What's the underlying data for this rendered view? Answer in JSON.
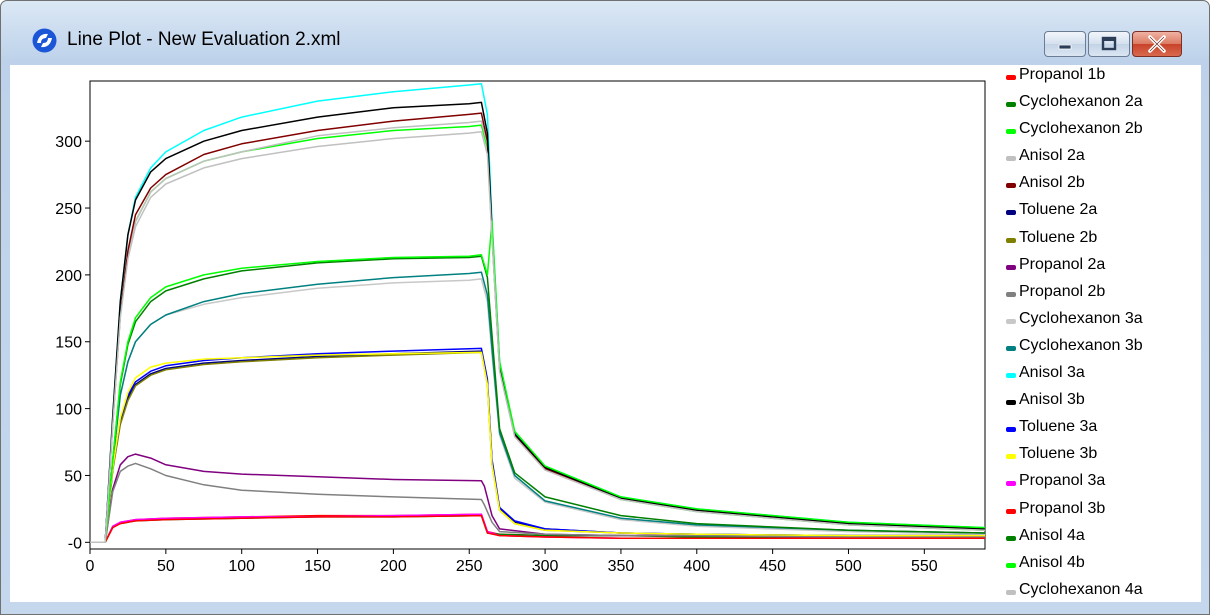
{
  "window": {
    "title": "Line Plot - New Evaluation 2.xml",
    "icon": "app-logo-icon",
    "buttons": [
      "minimize-icon",
      "maximize-icon",
      "close-icon"
    ]
  },
  "chart_data": {
    "type": "line",
    "title": "",
    "xlabel": "",
    "ylabel": "",
    "xlim": [
      0,
      590
    ],
    "ylim": [
      -5,
      345
    ],
    "x_ticks": [
      0,
      50,
      100,
      150,
      200,
      250,
      300,
      350,
      400,
      450,
      500,
      550
    ],
    "y_ticks": [
      0,
      50,
      100,
      150,
      200,
      250,
      300
    ],
    "y_tick_labels": [
      "-0",
      "50",
      "100",
      "150",
      "200",
      "250",
      "300"
    ],
    "grid": false,
    "legend_position": "right",
    "series": [
      {
        "name": "Propanol 1b",
        "color": "#ff0000",
        "x": [
          0,
          10,
          15,
          20,
          30,
          50,
          100,
          150,
          200,
          258,
          262,
          270,
          300,
          350,
          400,
          500,
          590
        ],
        "y": [
          0,
          0,
          12,
          15,
          17,
          18,
          19,
          20,
          20,
          21,
          8,
          6,
          5,
          5,
          5,
          4,
          4
        ]
      },
      {
        "name": "Cyclohexanon 2a",
        "color": "#008000",
        "x": [
          0,
          10,
          15,
          20,
          30,
          50,
          100,
          150,
          200,
          258,
          262,
          270,
          300,
          350,
          400,
          500,
          590
        ],
        "y": [
          0,
          0,
          12,
          14,
          16,
          17,
          18,
          19,
          19,
          20,
          7,
          6,
          5,
          5,
          4,
          4,
          4
        ]
      },
      {
        "name": "Cyclohexanon 2b",
        "color": "#00ff00",
        "x": [
          0,
          10,
          15,
          20,
          25,
          30,
          40,
          50,
          75,
          100,
          150,
          200,
          250,
          258,
          262,
          265,
          270,
          280,
          300,
          350,
          400,
          500,
          590
        ],
        "y": [
          0,
          0,
          90,
          170,
          215,
          240,
          262,
          272,
          285,
          292,
          302,
          308,
          311,
          312,
          295,
          230,
          130,
          80,
          55,
          32,
          23,
          13,
          9
        ]
      },
      {
        "name": "Anisol 2a",
        "color": "#c0c0c0",
        "x": [
          0,
          10,
          15,
          20,
          25,
          30,
          40,
          50,
          75,
          100,
          150,
          200,
          250,
          258,
          262,
          265,
          270,
          280,
          300,
          350,
          400,
          500,
          590
        ],
        "y": [
          0,
          0,
          90,
          170,
          215,
          240,
          262,
          272,
          285,
          292,
          304,
          310,
          314,
          315,
          298,
          230,
          130,
          80,
          55,
          33,
          24,
          14,
          10
        ]
      },
      {
        "name": "Anisol 2b",
        "color": "#800000",
        "x": [
          0,
          10,
          15,
          20,
          25,
          30,
          40,
          50,
          75,
          100,
          150,
          200,
          250,
          258,
          262,
          265,
          270,
          280,
          300,
          350,
          400,
          500,
          590
        ],
        "y": [
          0,
          0,
          90,
          170,
          218,
          245,
          265,
          275,
          290,
          298,
          308,
          315,
          320,
          321,
          300,
          230,
          130,
          80,
          55,
          33,
          24,
          14,
          10
        ]
      },
      {
        "name": "Toluene 2a",
        "color": "#000080",
        "x": [
          0,
          10,
          15,
          20,
          25,
          30,
          40,
          50,
          75,
          100,
          150,
          200,
          258,
          262,
          265,
          270,
          280,
          300,
          350,
          400,
          500,
          590
        ],
        "y": [
          0,
          0,
          55,
          90,
          108,
          118,
          126,
          130,
          134,
          136,
          139,
          141,
          143,
          120,
          60,
          25,
          15,
          10,
          7,
          6,
          5,
          5
        ]
      },
      {
        "name": "Toluene 2b",
        "color": "#808000",
        "x": [
          0,
          10,
          15,
          20,
          25,
          30,
          40,
          50,
          75,
          100,
          150,
          200,
          258,
          262,
          265,
          270,
          280,
          300,
          350,
          400,
          500,
          590
        ],
        "y": [
          0,
          0,
          54,
          88,
          106,
          117,
          125,
          129,
          133,
          135,
          138,
          140,
          142,
          118,
          58,
          24,
          14,
          9,
          7,
          6,
          5,
          5
        ]
      },
      {
        "name": "Propanol 2a",
        "color": "#800080",
        "x": [
          0,
          10,
          15,
          20,
          25,
          30,
          40,
          50,
          75,
          100,
          150,
          200,
          258,
          260,
          265,
          270,
          300,
          350,
          400,
          500,
          590
        ],
        "y": [
          0,
          0,
          40,
          58,
          64,
          66,
          63,
          58,
          53,
          51,
          49,
          47,
          46,
          42,
          20,
          10,
          6,
          5,
          5,
          4,
          4
        ]
      },
      {
        "name": "Propanol 2b",
        "color": "#808080",
        "x": [
          0,
          10,
          15,
          20,
          25,
          30,
          40,
          50,
          75,
          100,
          150,
          200,
          258,
          260,
          265,
          270,
          300,
          350,
          400,
          500,
          590
        ],
        "y": [
          0,
          0,
          38,
          53,
          57,
          59,
          55,
          50,
          43,
          39,
          36,
          34,
          32,
          28,
          15,
          8,
          6,
          5,
          5,
          4,
          4
        ]
      },
      {
        "name": "Cyclohexanon 3a",
        "color": "#c8c8c8",
        "x": [
          0,
          10,
          15,
          20,
          25,
          30,
          40,
          50,
          75,
          100,
          150,
          200,
          250,
          258,
          262,
          265,
          270,
          280,
          300,
          350,
          400,
          500,
          590
        ],
        "y": [
          0,
          0,
          60,
          110,
          135,
          150,
          163,
          170,
          178,
          183,
          190,
          194,
          196,
          197,
          180,
          140,
          80,
          48,
          30,
          17,
          12,
          8,
          6
        ]
      },
      {
        "name": "Cyclohexanon 3b",
        "color": "#008080",
        "x": [
          0,
          10,
          15,
          20,
          25,
          30,
          40,
          50,
          75,
          100,
          150,
          200,
          250,
          258,
          262,
          265,
          270,
          280,
          300,
          350,
          400,
          500,
          590
        ],
        "y": [
          0,
          0,
          60,
          110,
          135,
          150,
          163,
          170,
          180,
          186,
          193,
          198,
          201,
          202,
          185,
          145,
          82,
          50,
          31,
          18,
          13,
          9,
          7
        ]
      },
      {
        "name": "Anisol 3a",
        "color": "#00ffff",
        "x": [
          0,
          10,
          15,
          20,
          25,
          30,
          40,
          50,
          75,
          100,
          150,
          200,
          250,
          258,
          262,
          265,
          270,
          280,
          300,
          350,
          400,
          500,
          590
        ],
        "y": [
          0,
          0,
          95,
          180,
          230,
          258,
          280,
          292,
          308,
          318,
          330,
          337,
          342,
          343,
          320,
          240,
          135,
          82,
          57,
          34,
          25,
          15,
          11
        ]
      },
      {
        "name": "Anisol 3b",
        "color": "#000000",
        "x": [
          0,
          10,
          15,
          20,
          25,
          30,
          40,
          50,
          75,
          100,
          150,
          200,
          250,
          258,
          262,
          265,
          270,
          280,
          300,
          350,
          400,
          500,
          590
        ],
        "y": [
          0,
          0,
          95,
          180,
          230,
          256,
          277,
          287,
          300,
          308,
          318,
          325,
          328,
          329,
          306,
          235,
          133,
          81,
          56,
          33,
          24,
          14,
          10
        ]
      },
      {
        "name": "Toluene 3a",
        "color": "#0000ff",
        "x": [
          0,
          10,
          15,
          20,
          25,
          30,
          40,
          50,
          75,
          100,
          150,
          200,
          258,
          262,
          265,
          270,
          280,
          300,
          350,
          400,
          500,
          590
        ],
        "y": [
          0,
          0,
          56,
          92,
          110,
          120,
          128,
          132,
          136,
          138,
          141,
          143,
          145,
          122,
          62,
          26,
          16,
          10,
          7,
          6,
          5,
          5
        ]
      },
      {
        "name": "Toluene 3b",
        "color": "#ffff00",
        "x": [
          0,
          10,
          15,
          20,
          25,
          30,
          40,
          50,
          75,
          100,
          150,
          200,
          258,
          262,
          265,
          270,
          280,
          300,
          350,
          400,
          500,
          590
        ],
        "y": [
          0,
          0,
          56,
          93,
          112,
          123,
          131,
          134,
          137,
          138,
          140,
          141,
          142,
          118,
          58,
          24,
          14,
          9,
          7,
          6,
          5,
          5
        ]
      },
      {
        "name": "Propanol 3a",
        "color": "#ff00ff",
        "x": [
          0,
          10,
          15,
          20,
          30,
          50,
          100,
          150,
          200,
          258,
          262,
          270,
          300,
          350,
          400,
          500,
          590
        ],
        "y": [
          0,
          0,
          12,
          15,
          17,
          18,
          19,
          19,
          20,
          21,
          8,
          5,
          4,
          3,
          3,
          3,
          3
        ]
      },
      {
        "name": "Propanol 3b",
        "color": "#ff0000",
        "x": [
          0,
          10,
          15,
          20,
          30,
          50,
          100,
          150,
          200,
          258,
          262,
          270,
          300,
          350,
          400,
          500,
          590
        ],
        "y": [
          0,
          0,
          11,
          14,
          16,
          17,
          18,
          19,
          19,
          20,
          7,
          5,
          4,
          3,
          3,
          3,
          3
        ]
      },
      {
        "name": "Anisol 4a",
        "color": "#008000",
        "x": [
          0,
          10,
          15,
          20,
          25,
          30,
          40,
          50,
          75,
          100,
          150,
          200,
          250,
          258,
          262,
          265,
          270,
          280,
          300,
          350,
          400,
          500,
          590
        ],
        "y": [
          0,
          0,
          62,
          118,
          148,
          165,
          180,
          188,
          197,
          203,
          209,
          212,
          213,
          214,
          198,
          155,
          85,
          52,
          34,
          20,
          14,
          9,
          7
        ]
      },
      {
        "name": "Anisol 4b",
        "color": "#00ff00",
        "x": [
          0,
          10,
          15,
          20,
          25,
          30,
          40,
          50,
          75,
          100,
          150,
          200,
          250,
          258,
          262,
          265,
          270,
          280,
          300,
          350,
          400,
          500,
          590
        ],
        "y": [
          0,
          0,
          62,
          120,
          150,
          168,
          183,
          191,
          200,
          205,
          210,
          213,
          214,
          215,
          200,
          240,
          135,
          83,
          57,
          34,
          25,
          15,
          11
        ]
      },
      {
        "name": "Cyclohexanon 4a",
        "color": "#c0c0c0",
        "x": [
          0,
          10,
          15,
          20,
          25,
          30,
          40,
          50,
          75,
          100,
          150,
          200,
          250,
          258,
          262,
          265,
          270,
          280,
          300,
          350,
          400,
          500,
          590
        ],
        "y": [
          0,
          0,
          88,
          168,
          212,
          236,
          258,
          268,
          280,
          287,
          296,
          302,
          306,
          307,
          290,
          228,
          128,
          79,
          54,
          32,
          23,
          13,
          9
        ]
      }
    ]
  }
}
